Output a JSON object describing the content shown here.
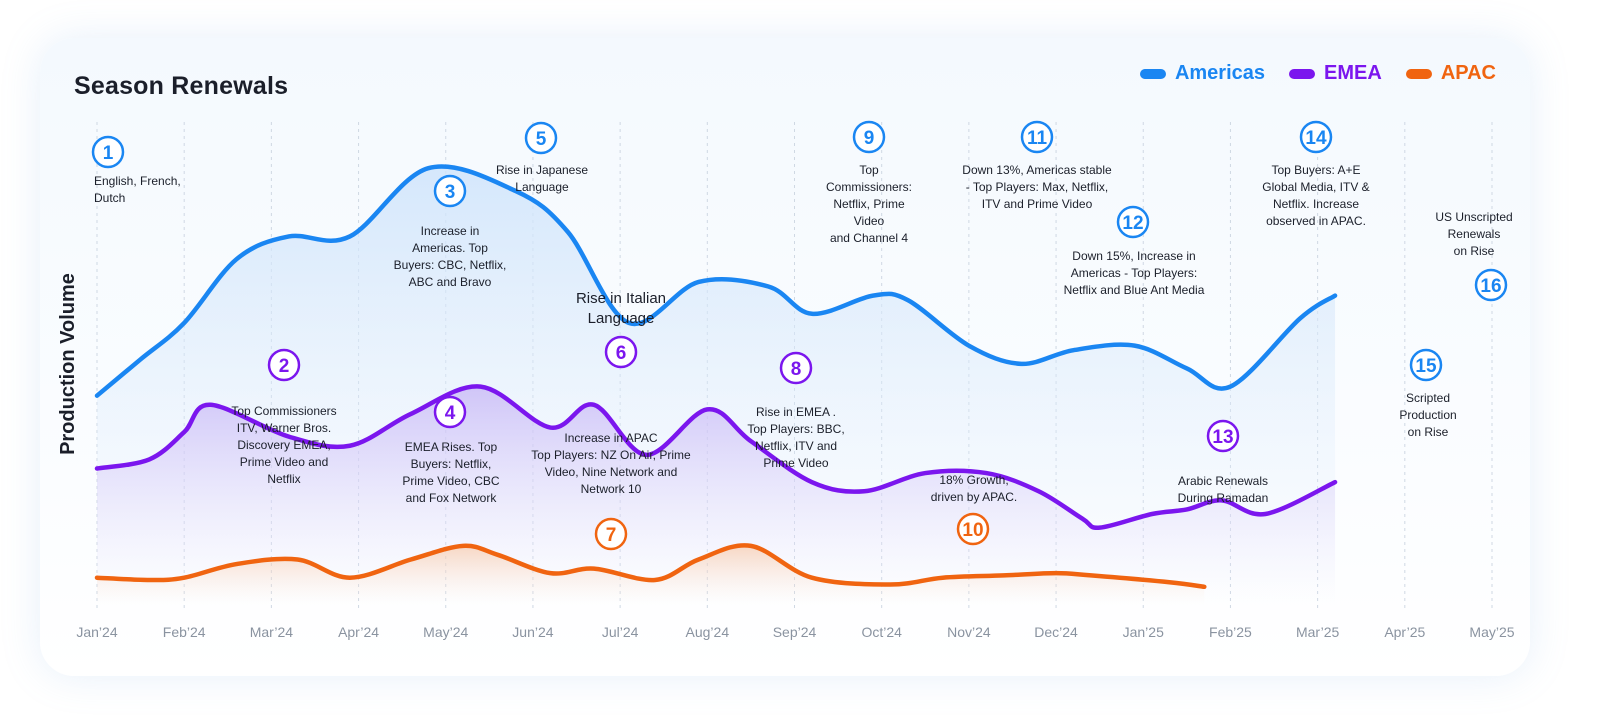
{
  "chart_data": {
    "type": "line",
    "title": "Season Renewals",
    "ylabel": "Production Volume",
    "xlabel": "",
    "grid": true,
    "legend_position": "top-right",
    "categories": [
      "Jan’24",
      "Feb’24",
      "Mar’24",
      "Apr’24",
      "May’24",
      "Jun’24",
      "Jul’24",
      "Aug’24",
      "Sep’24",
      "Oct’24",
      "Nov’24",
      "Dec’24",
      "Jan’25",
      "Feb’25",
      "Mar’25",
      "Apr’25",
      "May’25"
    ],
    "ylim": [
      0,
      100
    ],
    "series": [
      {
        "name": "Americas",
        "color": "#1a86f2",
        "points": [
          [
            0,
            46
          ],
          [
            0.5,
            54
          ],
          [
            1,
            62
          ],
          [
            1.6,
            76
          ],
          [
            2.2,
            81
          ],
          [
            2.9,
            81
          ],
          [
            3.8,
            96
          ],
          [
            4.8,
            91
          ],
          [
            5.4,
            82
          ],
          [
            6.1,
            62
          ],
          [
            6.9,
            71
          ],
          [
            7.7,
            70
          ],
          [
            8.2,
            64
          ],
          [
            8.9,
            68
          ],
          [
            9.3,
            67
          ],
          [
            10,
            57
          ],
          [
            10.6,
            53
          ],
          [
            11.2,
            56
          ],
          [
            11.9,
            57
          ],
          [
            12.5,
            52
          ],
          [
            13,
            48
          ],
          [
            13.8,
            63
          ],
          [
            14.2,
            68
          ]
        ]
      },
      {
        "name": "EMEA",
        "color": "#7b16ee",
        "points": [
          [
            0,
            30
          ],
          [
            0.6,
            32
          ],
          [
            1,
            38
          ],
          [
            1.3,
            44
          ],
          [
            2.2,
            37
          ],
          [
            2.9,
            35
          ],
          [
            3.6,
            42
          ],
          [
            4.4,
            48
          ],
          [
            5.2,
            39
          ],
          [
            5.7,
            44
          ],
          [
            6.3,
            33
          ],
          [
            7,
            43
          ],
          [
            7.5,
            36
          ],
          [
            8.2,
            27
          ],
          [
            8.8,
            25
          ],
          [
            9.5,
            29
          ],
          [
            10.2,
            29
          ],
          [
            10.8,
            25
          ],
          [
            11.3,
            19
          ],
          [
            11.5,
            17
          ],
          [
            12.1,
            20
          ],
          [
            12.5,
            21
          ],
          [
            12.9,
            23
          ],
          [
            13.4,
            20
          ],
          [
            14.2,
            27
          ]
        ]
      },
      {
        "name": "APAC",
        "color": "#f06410",
        "points": [
          [
            0,
            6
          ],
          [
            0.6,
            5.5
          ],
          [
            1,
            6
          ],
          [
            1.6,
            9
          ],
          [
            2.3,
            10
          ],
          [
            2.9,
            6
          ],
          [
            3.6,
            10
          ],
          [
            4.2,
            13
          ],
          [
            4.6,
            11
          ],
          [
            5.2,
            7
          ],
          [
            5.7,
            8
          ],
          [
            6.4,
            5.5
          ],
          [
            6.9,
            10
          ],
          [
            7.5,
            13
          ],
          [
            8.2,
            6
          ],
          [
            9.1,
            4.5
          ],
          [
            9.7,
            6
          ],
          [
            10.4,
            6.5
          ],
          [
            11,
            7
          ],
          [
            11.4,
            6.5
          ],
          [
            12.3,
            5
          ],
          [
            12.7,
            4
          ]
        ]
      }
    ],
    "markers": [
      {
        "n": "1",
        "series": "Americas",
        "text": "English, French,\nDutch"
      },
      {
        "n": "2",
        "series": "EMEA",
        "text": "Top Commissioners\nITV, Warner Bros.\nDiscovery EMEA,\nPrime Video and\nNetflix"
      },
      {
        "n": "3",
        "series": "Americas",
        "text": "Increase in\nAmericas. Top\nBuyers: CBC, Netflix,\nABC and Bravo"
      },
      {
        "n": "4",
        "series": "EMEA",
        "text": "EMEA Rises. Top\nBuyers: Netflix,\nPrime Video, CBC\nand Fox Network"
      },
      {
        "n": "5",
        "series": "Americas",
        "text": "Rise in Japanese\nLanguage"
      },
      {
        "n": "6",
        "series": "EMEA",
        "text": "Rise in Italian\nLanguage"
      },
      {
        "n": "7",
        "series": "APAC",
        "text": "Increase in APAC\nTop Players: NZ On Air, Prime\nVideo, Nine Network and\nNetwork 10"
      },
      {
        "n": "8",
        "series": "EMEA",
        "text": "Rise in EMEA .\nTop Players: BBC,\nNetflix, ITV and\nPrime Video"
      },
      {
        "n": "9",
        "series": "Americas",
        "text": "Top\nCommissioners:\nNetflix, Prime\nVideo\nand Channel 4"
      },
      {
        "n": "10",
        "series": "APAC",
        "text": "18% Growth,\ndriven by APAC."
      },
      {
        "n": "11",
        "series": "Americas",
        "text": "Down 13%, Americas stable\n- Top Players: Max, Netflix,\nITV and Prime Video"
      },
      {
        "n": "12",
        "series": "Americas",
        "text": "Down 15%, Increase in\nAmericas - Top Players:\nNetflix and Blue Ant Media"
      },
      {
        "n": "13",
        "series": "EMEA",
        "text": "Arabic Renewals\nDuring Ramadan"
      },
      {
        "n": "14",
        "series": "Americas",
        "text": "Top Buyers: A+E\nGlobal Media, ITV &\nNetflix. Increase\nobserved in APAC."
      },
      {
        "n": "15",
        "series": "Americas",
        "text": "Scripted\nProduction\non Rise"
      },
      {
        "n": "16",
        "series": "Americas",
        "text": "US Unscripted\nRenewals\non Rise"
      }
    ]
  }
}
